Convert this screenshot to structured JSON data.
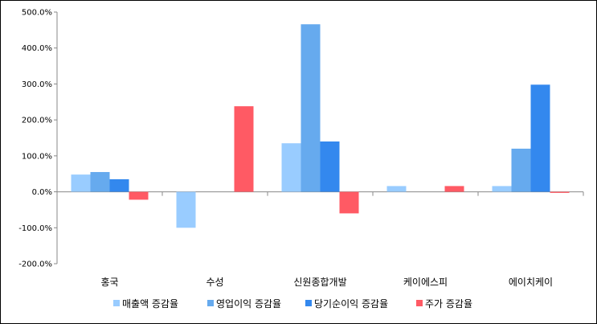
{
  "chart_data": {
    "type": "bar",
    "title": "",
    "xlabel": "",
    "ylabel": "",
    "ylim": [
      -200,
      500
    ],
    "y_ticks": [
      "500.0%",
      "400.0%",
      "300.0%",
      "200.0%",
      "100.0%",
      "0.0%",
      "-100.0%",
      "-200.0%"
    ],
    "categories": [
      "홍국",
      "수성",
      "신원종합개발",
      "케이에스피",
      "에이치케이"
    ],
    "series": [
      {
        "name": "매출액 증감율",
        "color": "#99ccff",
        "values": [
          48,
          -100,
          135,
          16,
          16
        ]
      },
      {
        "name": "영업이익 증감율",
        "color": "#66aaee",
        "values": [
          55,
          0,
          466,
          0,
          120
        ]
      },
      {
        "name": "당기순이익 증감율",
        "color": "#3388ee",
        "values": [
          35,
          0,
          140,
          0,
          298
        ]
      },
      {
        "name": "주가 증감율",
        "color": "#ff5a64",
        "values": [
          -22,
          238,
          -60,
          16,
          -3
        ]
      }
    ],
    "grid": false,
    "legend_position": "bottom"
  }
}
